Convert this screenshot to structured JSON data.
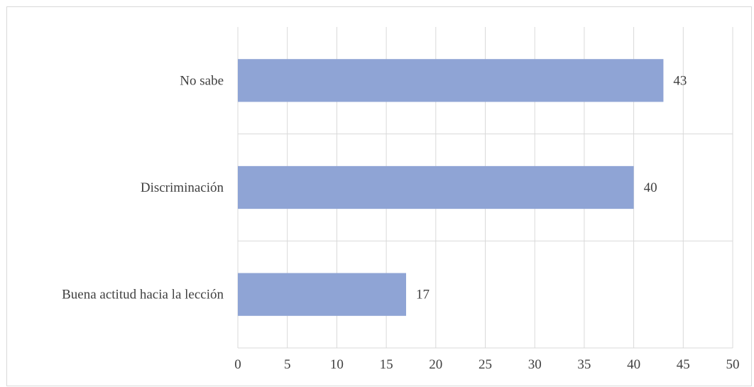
{
  "chart_data": {
    "type": "bar",
    "orientation": "horizontal",
    "categories": [
      "No sabe",
      "Discriminación",
      "Buena actitud hacia la lección"
    ],
    "values": [
      43,
      40,
      17
    ],
    "data_labels": [
      "43",
      "40",
      "17"
    ],
    "xlim": [
      0,
      50
    ],
    "x_ticks": [
      0,
      5,
      10,
      15,
      20,
      25,
      30,
      35,
      40,
      45,
      50
    ],
    "grid": true,
    "bar_color": "#8FA4D5",
    "grid_color": "#d9d9d9"
  }
}
